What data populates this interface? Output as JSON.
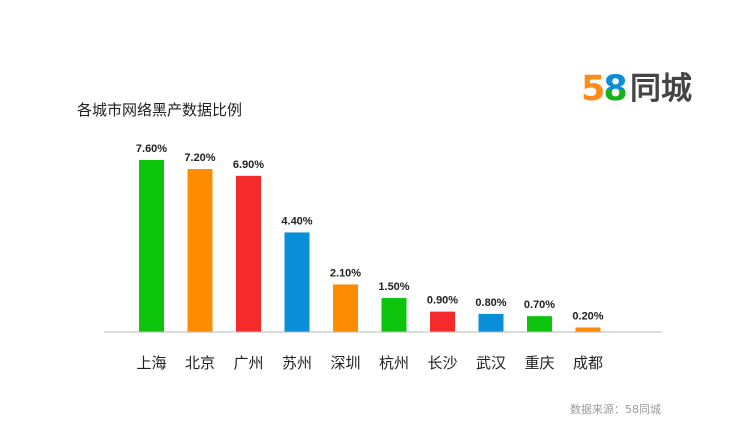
{
  "chart_data": {
    "type": "bar",
    "title": "各城市网络黑产数据比例",
    "categories": [
      "上海",
      "北京",
      "广州",
      "苏州",
      "深圳",
      "杭州",
      "长沙",
      "武汉",
      "重庆",
      "成都"
    ],
    "values": [
      7.6,
      7.2,
      6.9,
      4.4,
      2.1,
      1.5,
      0.9,
      0.8,
      0.7,
      0.2
    ],
    "value_labels": [
      "7.60%",
      "7.20%",
      "6.90%",
      "4.40%",
      "2.10%",
      "1.50%",
      "0.90%",
      "0.80%",
      "0.70%",
      "0.20%"
    ],
    "bar_colors": [
      "#0cc40c",
      "#ff8c00",
      "#f52a2a",
      "#0a8ed8",
      "#ff8c00",
      "#0cc40c",
      "#f52a2a",
      "#0a8ed8",
      "#0cc40c",
      "#ff8c00"
    ],
    "ylim": [
      0,
      7.6
    ],
    "grid": false,
    "xlabel": "",
    "ylabel": ""
  },
  "logo": {
    "digit_5": "5",
    "digit_8": "8",
    "text": "同城",
    "colors": {
      "five": "#ff8c1a",
      "eight_top": "#0a8ed8",
      "eight_bottom": "#16b316"
    }
  },
  "source": "数据来源：58同城"
}
